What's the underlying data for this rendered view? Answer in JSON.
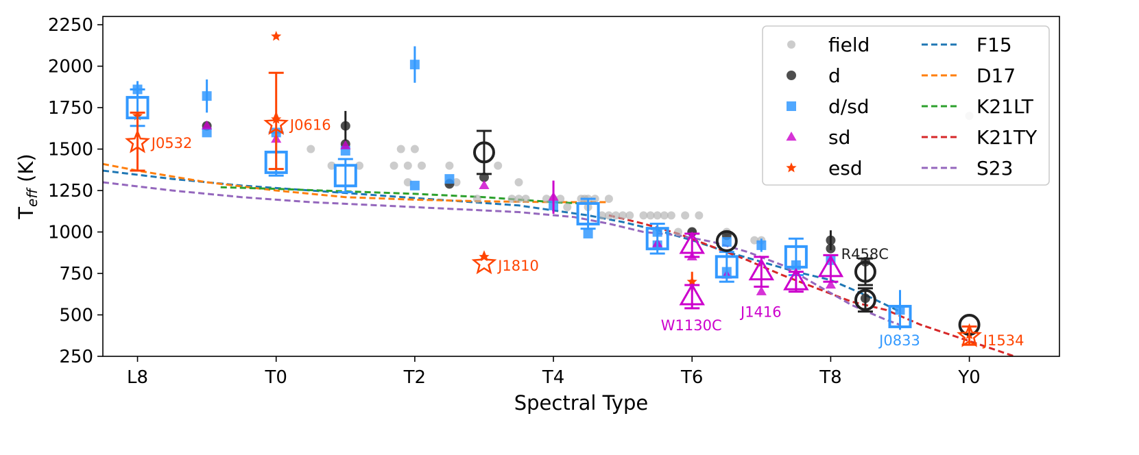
{
  "chart_data": {
    "type": "scatter",
    "title": "",
    "xlabel": "Spectral Type",
    "ylabel_main": "T",
    "ylabel_sub": "eff",
    "ylabel_unit": " (K)",
    "xlim": [
      17.5,
      31.3
    ],
    "ylim": [
      250,
      2300
    ],
    "x_ticks": [
      {
        "v": 18,
        "label": "L8"
      },
      {
        "v": 20,
        "label": "T0"
      },
      {
        "v": 22,
        "label": "T2"
      },
      {
        "v": 24,
        "label": "T4"
      },
      {
        "v": 26,
        "label": "T6"
      },
      {
        "v": 28,
        "label": "T8"
      },
      {
        "v": 30,
        "label": "Y0"
      }
    ],
    "y_ticks": [
      {
        "v": 250,
        "label": "250"
      },
      {
        "v": 500,
        "label": "500"
      },
      {
        "v": 750,
        "label": "750"
      },
      {
        "v": 1000,
        "label": "1000"
      },
      {
        "v": 1250,
        "label": "1250"
      },
      {
        "v": 1500,
        "label": "1500"
      },
      {
        "v": 1750,
        "label": "1750"
      },
      {
        "v": 2000,
        "label": "2000"
      },
      {
        "v": 2250,
        "label": "2250"
      }
    ],
    "grid": false,
    "legend_position": "top-right",
    "colors": {
      "field": "#b0b0b0",
      "d": "#222222",
      "dsd": "#3399ff",
      "sd": "#cc00cc",
      "esd": "#ff4400",
      "F15": "#1f77b4",
      "D17": "#ff7f0e",
      "K21LT": "#2ca02c",
      "K21TY": "#d62728",
      "S23": "#9467bd"
    },
    "legend": [
      {
        "key": "field",
        "label": "field",
        "marker": "circle-small"
      },
      {
        "key": "d",
        "label": "d",
        "marker": "circle"
      },
      {
        "key": "dsd",
        "label": "d/sd",
        "marker": "square"
      },
      {
        "key": "sd",
        "label": "sd",
        "marker": "triangle"
      },
      {
        "key": "esd",
        "label": "esd",
        "marker": "star"
      },
      {
        "key": "F15",
        "label": "F15",
        "marker": "dashed"
      },
      {
        "key": "D17",
        "label": "D17",
        "marker": "dashed"
      },
      {
        "key": "K21LT",
        "label": "K21LT",
        "marker": "dashed"
      },
      {
        "key": "K21TY",
        "label": "K21TY",
        "marker": "dashed"
      },
      {
        "key": "S23",
        "label": "S23",
        "marker": "dashed"
      }
    ],
    "series": [
      {
        "name": "field",
        "marker": "circle-small",
        "points": [
          {
            "x": 20.5,
            "y": 1500
          },
          {
            "x": 20.8,
            "y": 1400
          },
          {
            "x": 21.2,
            "y": 1400
          },
          {
            "x": 21.7,
            "y": 1400
          },
          {
            "x": 21.8,
            "y": 1500
          },
          {
            "x": 21.9,
            "y": 1400
          },
          {
            "x": 22.0,
            "y": 1500
          },
          {
            "x": 21.9,
            "y": 1300
          },
          {
            "x": 22.1,
            "y": 1400
          },
          {
            "x": 22.5,
            "y": 1400
          },
          {
            "x": 22.5,
            "y": 1300
          },
          {
            "x": 22.6,
            "y": 1300
          },
          {
            "x": 22.9,
            "y": 1200
          },
          {
            "x": 23.2,
            "y": 1400
          },
          {
            "x": 23.5,
            "y": 1300
          },
          {
            "x": 23.4,
            "y": 1200
          },
          {
            "x": 23.5,
            "y": 1200
          },
          {
            "x": 23.6,
            "y": 1200
          },
          {
            "x": 23.9,
            "y": 1200
          },
          {
            "x": 24.0,
            "y": 1200
          },
          {
            "x": 24.1,
            "y": 1200
          },
          {
            "x": 24.2,
            "y": 1150
          },
          {
            "x": 24.4,
            "y": 1200
          },
          {
            "x": 24.45,
            "y": 1200
          },
          {
            "x": 24.5,
            "y": 1200
          },
          {
            "x": 24.6,
            "y": 1200
          },
          {
            "x": 24.5,
            "y": 1150
          },
          {
            "x": 24.7,
            "y": 1100
          },
          {
            "x": 24.8,
            "y": 1200
          },
          {
            "x": 24.8,
            "y": 1100
          },
          {
            "x": 24.9,
            "y": 1100
          },
          {
            "x": 25.0,
            "y": 1100
          },
          {
            "x": 25.1,
            "y": 1100
          },
          {
            "x": 25.3,
            "y": 1100
          },
          {
            "x": 25.4,
            "y": 1100
          },
          {
            "x": 25.5,
            "y": 1100
          },
          {
            "x": 25.6,
            "y": 1100
          },
          {
            "x": 25.7,
            "y": 1100
          },
          {
            "x": 25.9,
            "y": 1100
          },
          {
            "x": 26.1,
            "y": 1100
          },
          {
            "x": 25.8,
            "y": 1000
          },
          {
            "x": 26.0,
            "y": 1000
          },
          {
            "x": 26.5,
            "y": 1000
          },
          {
            "x": 26.9,
            "y": 950
          },
          {
            "x": 27.0,
            "y": 950
          },
          {
            "x": 30.0,
            "y": 1700
          }
        ]
      },
      {
        "name": "d",
        "marker": "circle",
        "points": [
          {
            "x": 19.0,
            "y": 1640
          },
          {
            "x": 21.0,
            "y": 1640,
            "err": 90
          },
          {
            "x": 21.0,
            "y": 1530
          },
          {
            "x": 22.5,
            "y": 1290
          },
          {
            "x": 23.0,
            "y": 1330
          },
          {
            "x": 26.0,
            "y": 1000
          },
          {
            "x": 26.5,
            "y": 980
          },
          {
            "x": 28.0,
            "y": 950,
            "err": 60
          },
          {
            "x": 28.0,
            "y": 900
          },
          {
            "x": 28.5,
            "y": 820
          },
          {
            "x": 28.5,
            "y": 600
          }
        ]
      },
      {
        "name": "d/sd",
        "marker": "square",
        "points": [
          {
            "x": 18.0,
            "y": 1860,
            "err": 50
          },
          {
            "x": 19.0,
            "y": 1820,
            "err": 100
          },
          {
            "x": 19.0,
            "y": 1600
          },
          {
            "x": 20.0,
            "y": 1600
          },
          {
            "x": 21.0,
            "y": 1490
          },
          {
            "x": 22.0,
            "y": 2010,
            "err": 110
          },
          {
            "x": 22.0,
            "y": 1280
          },
          {
            "x": 22.5,
            "y": 1320
          },
          {
            "x": 24.0,
            "y": 1160
          },
          {
            "x": 24.5,
            "y": 990
          },
          {
            "x": 25.5,
            "y": 1000
          },
          {
            "x": 25.5,
            "y": 920
          },
          {
            "x": 26.5,
            "y": 940
          },
          {
            "x": 26.5,
            "y": 760
          },
          {
            "x": 27.0,
            "y": 920,
            "err": 40
          },
          {
            "x": 27.5,
            "y": 800
          },
          {
            "x": 28.0,
            "y": 830
          },
          {
            "x": 29.0,
            "y": 530,
            "err": 120
          }
        ]
      },
      {
        "name": "sd",
        "marker": "triangle",
        "points": [
          {
            "x": 19.0,
            "y": 1640
          },
          {
            "x": 20.0,
            "y": 1560
          },
          {
            "x": 21.0,
            "y": 1520
          },
          {
            "x": 23.0,
            "y": 1280
          },
          {
            "x": 24.0,
            "y": 1210,
            "err": 100
          },
          {
            "x": 25.5,
            "y": 930
          },
          {
            "x": 26.0,
            "y": 850
          },
          {
            "x": 26.5,
            "y": 740
          },
          {
            "x": 27.0,
            "y": 640
          },
          {
            "x": 28.0,
            "y": 680
          }
        ]
      },
      {
        "name": "esd",
        "marker": "star",
        "points": [
          {
            "x": 18.0,
            "y": 1700
          },
          {
            "x": 20.0,
            "y": 2180
          },
          {
            "x": 20.0,
            "y": 1680
          },
          {
            "x": 23.0,
            "y": 850
          },
          {
            "x": 26.0,
            "y": 700,
            "err": 60
          },
          {
            "x": 30.0,
            "y": 380
          }
        ]
      }
    ],
    "big_markers": [
      {
        "series": "dsd",
        "shape": "square",
        "x": 18.0,
        "y": 1750,
        "lo": 1640,
        "hi": 1860
      },
      {
        "series": "dsd",
        "shape": "square",
        "x": 20.0,
        "y": 1420,
        "lo": 1340,
        "hi": 1600
      },
      {
        "series": "dsd",
        "shape": "square",
        "x": 21.0,
        "y": 1340,
        "lo": 1240,
        "hi": 1440
      },
      {
        "series": "dsd",
        "shape": "square",
        "x": 24.5,
        "y": 1110,
        "lo": 1020,
        "hi": 1200
      },
      {
        "series": "dsd",
        "shape": "square",
        "x": 25.5,
        "y": 960,
        "lo": 870,
        "hi": 1050
      },
      {
        "series": "dsd",
        "shape": "square",
        "x": 26.5,
        "y": 790,
        "lo": 700,
        "hi": 880
      },
      {
        "series": "dsd",
        "shape": "square",
        "x": 27.5,
        "y": 850,
        "lo": 740,
        "hi": 960
      },
      {
        "series": "dsd",
        "shape": "square",
        "x": 29.0,
        "y": 490,
        "lo": 430,
        "hi": 550
      },
      {
        "series": "d",
        "shape": "circle",
        "x": 23.0,
        "y": 1480,
        "lo": 1350,
        "hi": 1610
      },
      {
        "series": "d",
        "shape": "circle",
        "x": 26.5,
        "y": 945,
        "lo": 945,
        "hi": 945
      },
      {
        "series": "d",
        "shape": "circle",
        "x": 28.5,
        "y": 760,
        "lo": 680,
        "hi": 840
      },
      {
        "series": "d",
        "shape": "circle",
        "x": 28.5,
        "y": 590,
        "lo": 520,
        "hi": 660
      },
      {
        "series": "d",
        "shape": "circle",
        "x": 30.0,
        "y": 440,
        "lo": 440,
        "hi": 440
      },
      {
        "series": "sd",
        "shape": "triangle",
        "x": 26.0,
        "y": 920,
        "lo": 850,
        "hi": 990
      },
      {
        "series": "sd",
        "shape": "triangle",
        "x": 26.0,
        "y": 610,
        "lo": 540,
        "hi": 680
      },
      {
        "series": "sd",
        "shape": "triangle",
        "x": 27.0,
        "y": 760,
        "lo": 670,
        "hi": 850
      },
      {
        "series": "sd",
        "shape": "triangle",
        "x": 27.5,
        "y": 700,
        "lo": 640,
        "hi": 760
      },
      {
        "series": "sd",
        "shape": "triangle",
        "x": 28.0,
        "y": 780,
        "lo": 700,
        "hi": 860
      },
      {
        "series": "esd",
        "shape": "star",
        "x": 18.0,
        "y": 1540,
        "lo": 1370,
        "hi": 1720
      },
      {
        "series": "esd",
        "shape": "star",
        "x": 20.0,
        "y": 1650,
        "lo": 1380,
        "hi": 1960
      },
      {
        "series": "esd",
        "shape": "star",
        "x": 23.0,
        "y": 810,
        "lo": 810,
        "hi": 810
      },
      {
        "series": "esd",
        "shape": "star",
        "x": 30.0,
        "y": 370,
        "lo": 320,
        "hi": 430
      }
    ],
    "annotations": [
      {
        "text": "J0532",
        "x": 18.2,
        "y": 1540,
        "color": "esd"
      },
      {
        "text": "J0616",
        "x": 20.2,
        "y": 1650,
        "color": "esd"
      },
      {
        "text": "J1810",
        "x": 23.2,
        "y": 800,
        "color": "esd"
      },
      {
        "text": "W1130C",
        "x": 25.55,
        "y": 440,
        "color": "sd"
      },
      {
        "text": "J1416",
        "x": 26.7,
        "y": 520,
        "color": "sd"
      },
      {
        "text": "R458C",
        "x": 28.15,
        "y": 870,
        "color": "d"
      },
      {
        "text": "J0833",
        "x": 28.7,
        "y": 350,
        "color": "dsd"
      },
      {
        "text": "J1534",
        "x": 30.2,
        "y": 350,
        "color": "esd"
      }
    ],
    "lines": [
      {
        "name": "F15",
        "points": [
          [
            17.5,
            1370
          ],
          [
            18.5,
            1320
          ],
          [
            19.5,
            1280
          ],
          [
            20.5,
            1250
          ],
          [
            21.5,
            1220
          ],
          [
            22.5,
            1190
          ],
          [
            23.5,
            1160
          ],
          [
            24.5,
            1100
          ],
          [
            25.0,
            1060
          ],
          [
            25.5,
            1010
          ],
          [
            26.0,
            950
          ],
          [
            26.5,
            880
          ],
          [
            27.0,
            820
          ],
          [
            27.5,
            760
          ],
          [
            28.0,
            710
          ],
          [
            28.5,
            620
          ],
          [
            29.0,
            520
          ]
        ]
      },
      {
        "name": "D17",
        "points": [
          [
            17.5,
            1410
          ],
          [
            18.0,
            1370
          ],
          [
            19.0,
            1300
          ],
          [
            20.0,
            1250
          ],
          [
            21.0,
            1210
          ],
          [
            22.0,
            1195
          ],
          [
            23.0,
            1185
          ],
          [
            24.0,
            1180
          ],
          [
            24.8,
            1180
          ]
        ]
      },
      {
        "name": "K21LT",
        "points": [
          [
            19.2,
            1270
          ],
          [
            20.0,
            1260
          ],
          [
            21.0,
            1245
          ],
          [
            22.0,
            1230
          ],
          [
            23.0,
            1210
          ],
          [
            24.0,
            1180
          ],
          [
            24.5,
            1170
          ]
        ]
      },
      {
        "name": "K21TY",
        "points": [
          [
            24.8,
            1100
          ],
          [
            25.3,
            1050
          ],
          [
            25.8,
            990
          ],
          [
            26.3,
            910
          ],
          [
            26.8,
            830
          ],
          [
            27.3,
            740
          ],
          [
            27.8,
            660
          ],
          [
            28.3,
            580
          ],
          [
            28.8,
            530
          ],
          [
            29.3,
            440
          ],
          [
            29.8,
            370
          ],
          [
            30.3,
            300
          ],
          [
            30.65,
            250
          ]
        ]
      },
      {
        "name": "S23",
        "points": [
          [
            17.5,
            1300
          ],
          [
            18.5,
            1250
          ],
          [
            19.5,
            1210
          ],
          [
            20.5,
            1180
          ],
          [
            21.5,
            1160
          ],
          [
            22.5,
            1140
          ],
          [
            23.5,
            1120
          ],
          [
            24.3,
            1090
          ],
          [
            24.8,
            1050
          ],
          [
            25.3,
            1000
          ],
          [
            25.8,
            980
          ],
          [
            26.3,
            940
          ],
          [
            26.8,
            880
          ],
          [
            27.3,
            800
          ],
          [
            27.8,
            680
          ],
          [
            28.3,
            560
          ],
          [
            28.8,
            470
          ],
          [
            29.0,
            440
          ]
        ]
      }
    ]
  }
}
